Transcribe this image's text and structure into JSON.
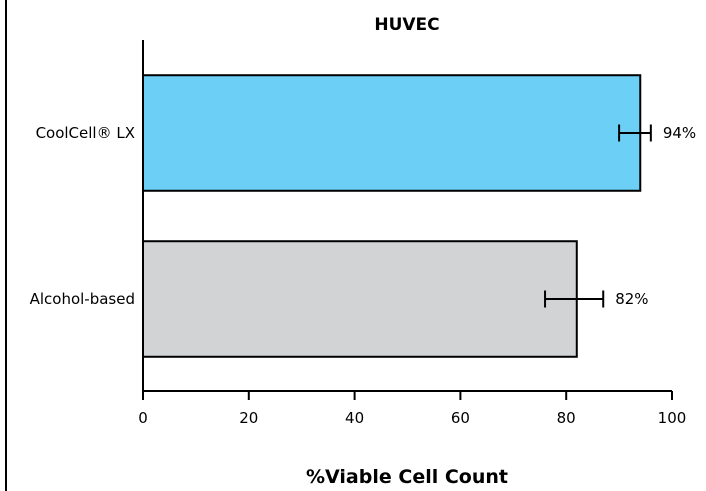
{
  "chart_data": {
    "type": "bar",
    "orientation": "horizontal",
    "title": "HUVEC",
    "xlabel": "%Viable Cell Count",
    "ylabel": "",
    "xlim": [
      0,
      100
    ],
    "xticks": [
      0,
      20,
      40,
      60,
      80,
      100
    ],
    "categories": [
      "CoolCell® LX",
      "Alcohol-based"
    ],
    "values": [
      94,
      82
    ],
    "error_low": [
      90,
      76
    ],
    "error_high": [
      96,
      87
    ],
    "value_labels": [
      "94%",
      "82%"
    ],
    "bar_colors": [
      "#6ccff6",
      "#d1d3d4"
    ],
    "grid": false,
    "legend": "none"
  }
}
